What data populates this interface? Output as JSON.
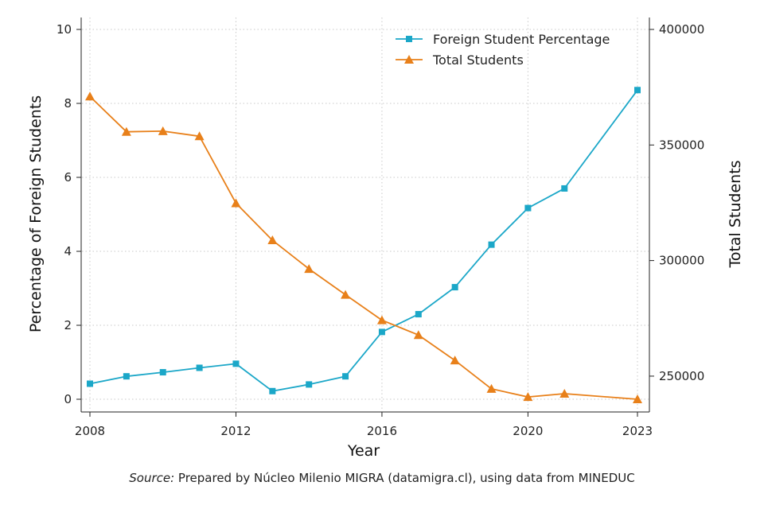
{
  "chart_data": {
    "type": "line",
    "x": [
      2008,
      2009,
      2010,
      2011,
      2012,
      2013,
      2014,
      2015,
      2016,
      2017,
      2018,
      2019,
      2020,
      2021,
      2023
    ],
    "xticks": [
      2008,
      2012,
      2016,
      2020,
      2023
    ],
    "xlim": [
      2008,
      2023
    ],
    "xlabel": "Year",
    "ylabel_left": "Percentage of Foreign Students",
    "ylabel_right": "Total Students",
    "ylim_left": [
      0,
      10
    ],
    "yticks_left": [
      0,
      2,
      4,
      6,
      8,
      10
    ],
    "ylim_right": [
      240000,
      400000
    ],
    "yticks_right": [
      250000,
      300000,
      350000,
      400000
    ],
    "grid": true,
    "legend_position": "top-right",
    "series": [
      {
        "name": "Foreign Student Percentage",
        "axis": "left",
        "marker": "square",
        "color": "#1BA7C8",
        "values": [
          0.42,
          0.62,
          0.73,
          0.85,
          0.96,
          0.22,
          0.4,
          0.62,
          1.82,
          2.3,
          3.03,
          4.18,
          5.17,
          5.7,
          8.36
        ]
      },
      {
        "name": "Total Students",
        "axis": "right",
        "marker": "triangle",
        "color": "#E8801A",
        "values": [
          371000,
          355700,
          356000,
          353800,
          324800,
          308800,
          296400,
          285200,
          274200,
          267800,
          256800,
          244500,
          241000,
          242400,
          240000
        ]
      }
    ]
  },
  "source": {
    "prefix": "Source:",
    "text": " Prepared by Núcleo Milenio MIGRA (datamigra.cl), using data from MINEDUC"
  }
}
